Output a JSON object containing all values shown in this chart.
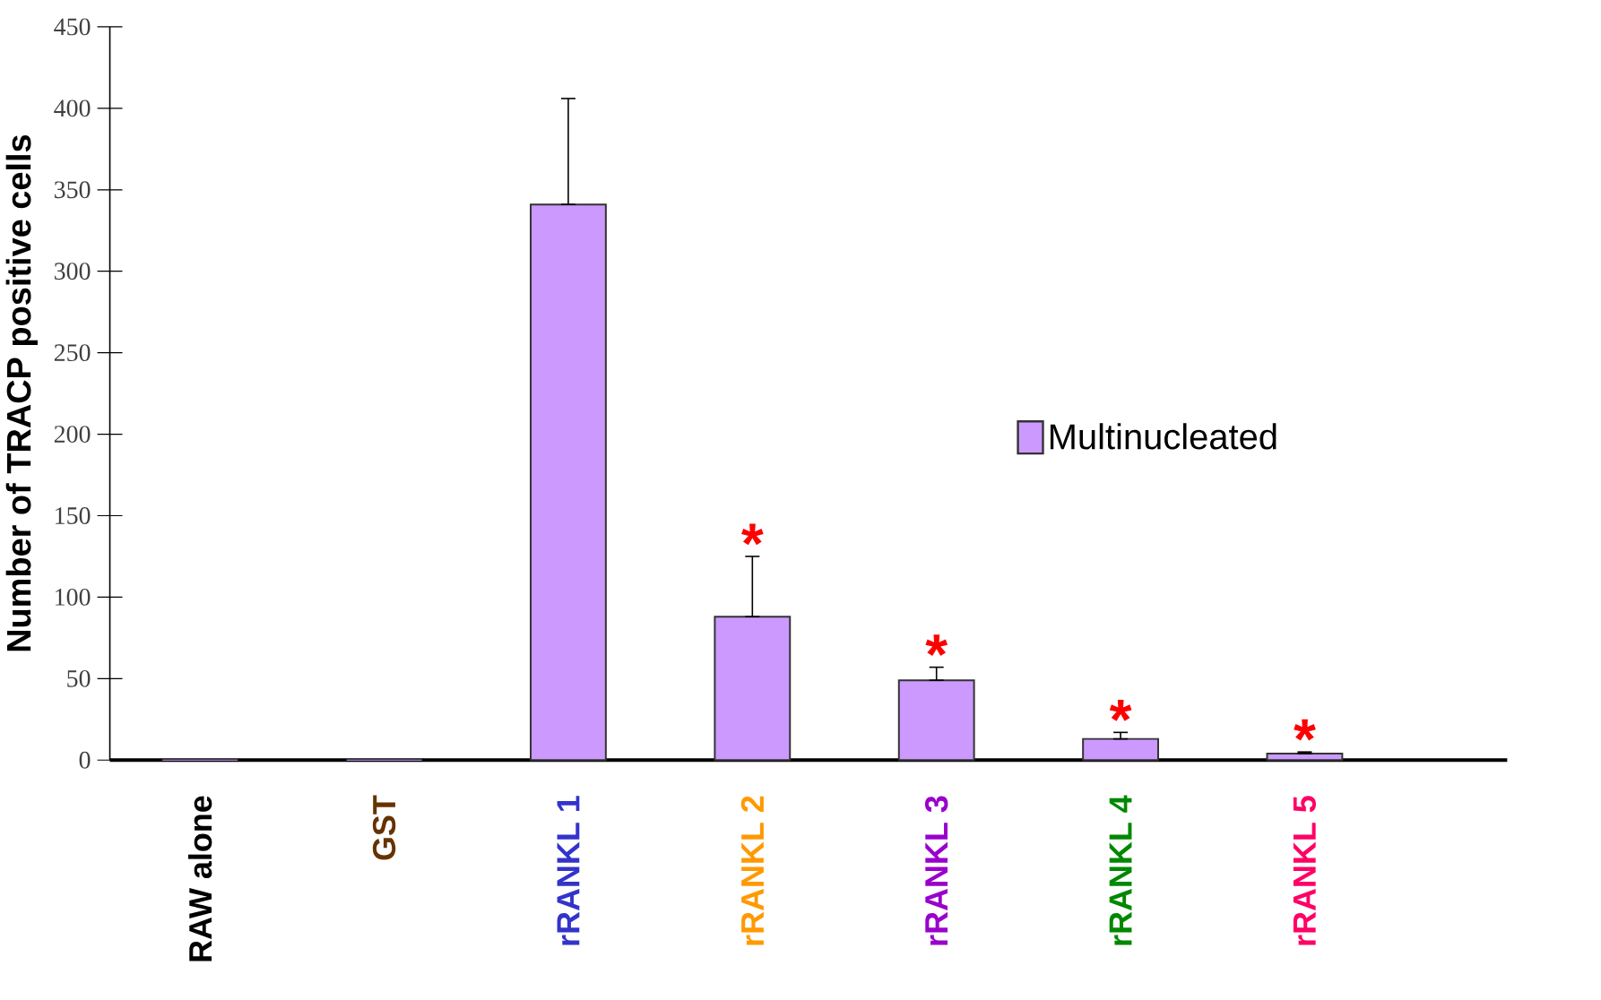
{
  "chart_data": {
    "type": "bar",
    "ylabel": "Number of TRACP positive cells",
    "categories": [
      "RAW alone",
      "GST",
      "rRANKL 1",
      "rRANKL 2",
      "rRANKL 3",
      "rRANKL 4",
      "rRANKL 5"
    ],
    "series": [
      {
        "name": "Multinucleated",
        "color": "#cc99ff",
        "values": [
          0,
          0,
          341,
          88,
          49,
          13,
          4
        ],
        "errors": [
          null,
          null,
          [
            341,
            406
          ],
          [
            88,
            125
          ],
          [
            49,
            57
          ],
          [
            13,
            17
          ],
          [
            4,
            5
          ]
        ]
      }
    ],
    "ylim": [
      0,
      450
    ],
    "yticks": [
      0,
      50,
      100,
      150,
      200,
      250,
      300,
      350,
      400,
      450
    ],
    "legend": "right",
    "grid": false,
    "annotations": [
      {
        "text": "*",
        "x": "rRANKL 2",
        "y": 88
      },
      {
        "text": "*",
        "x": "rRANKL 3",
        "y": 49
      },
      {
        "text": "*",
        "x": "rRANKL 4",
        "y": 13
      },
      {
        "text": "*",
        "x": "rRANKL 5",
        "y": 4
      }
    ]
  }
}
